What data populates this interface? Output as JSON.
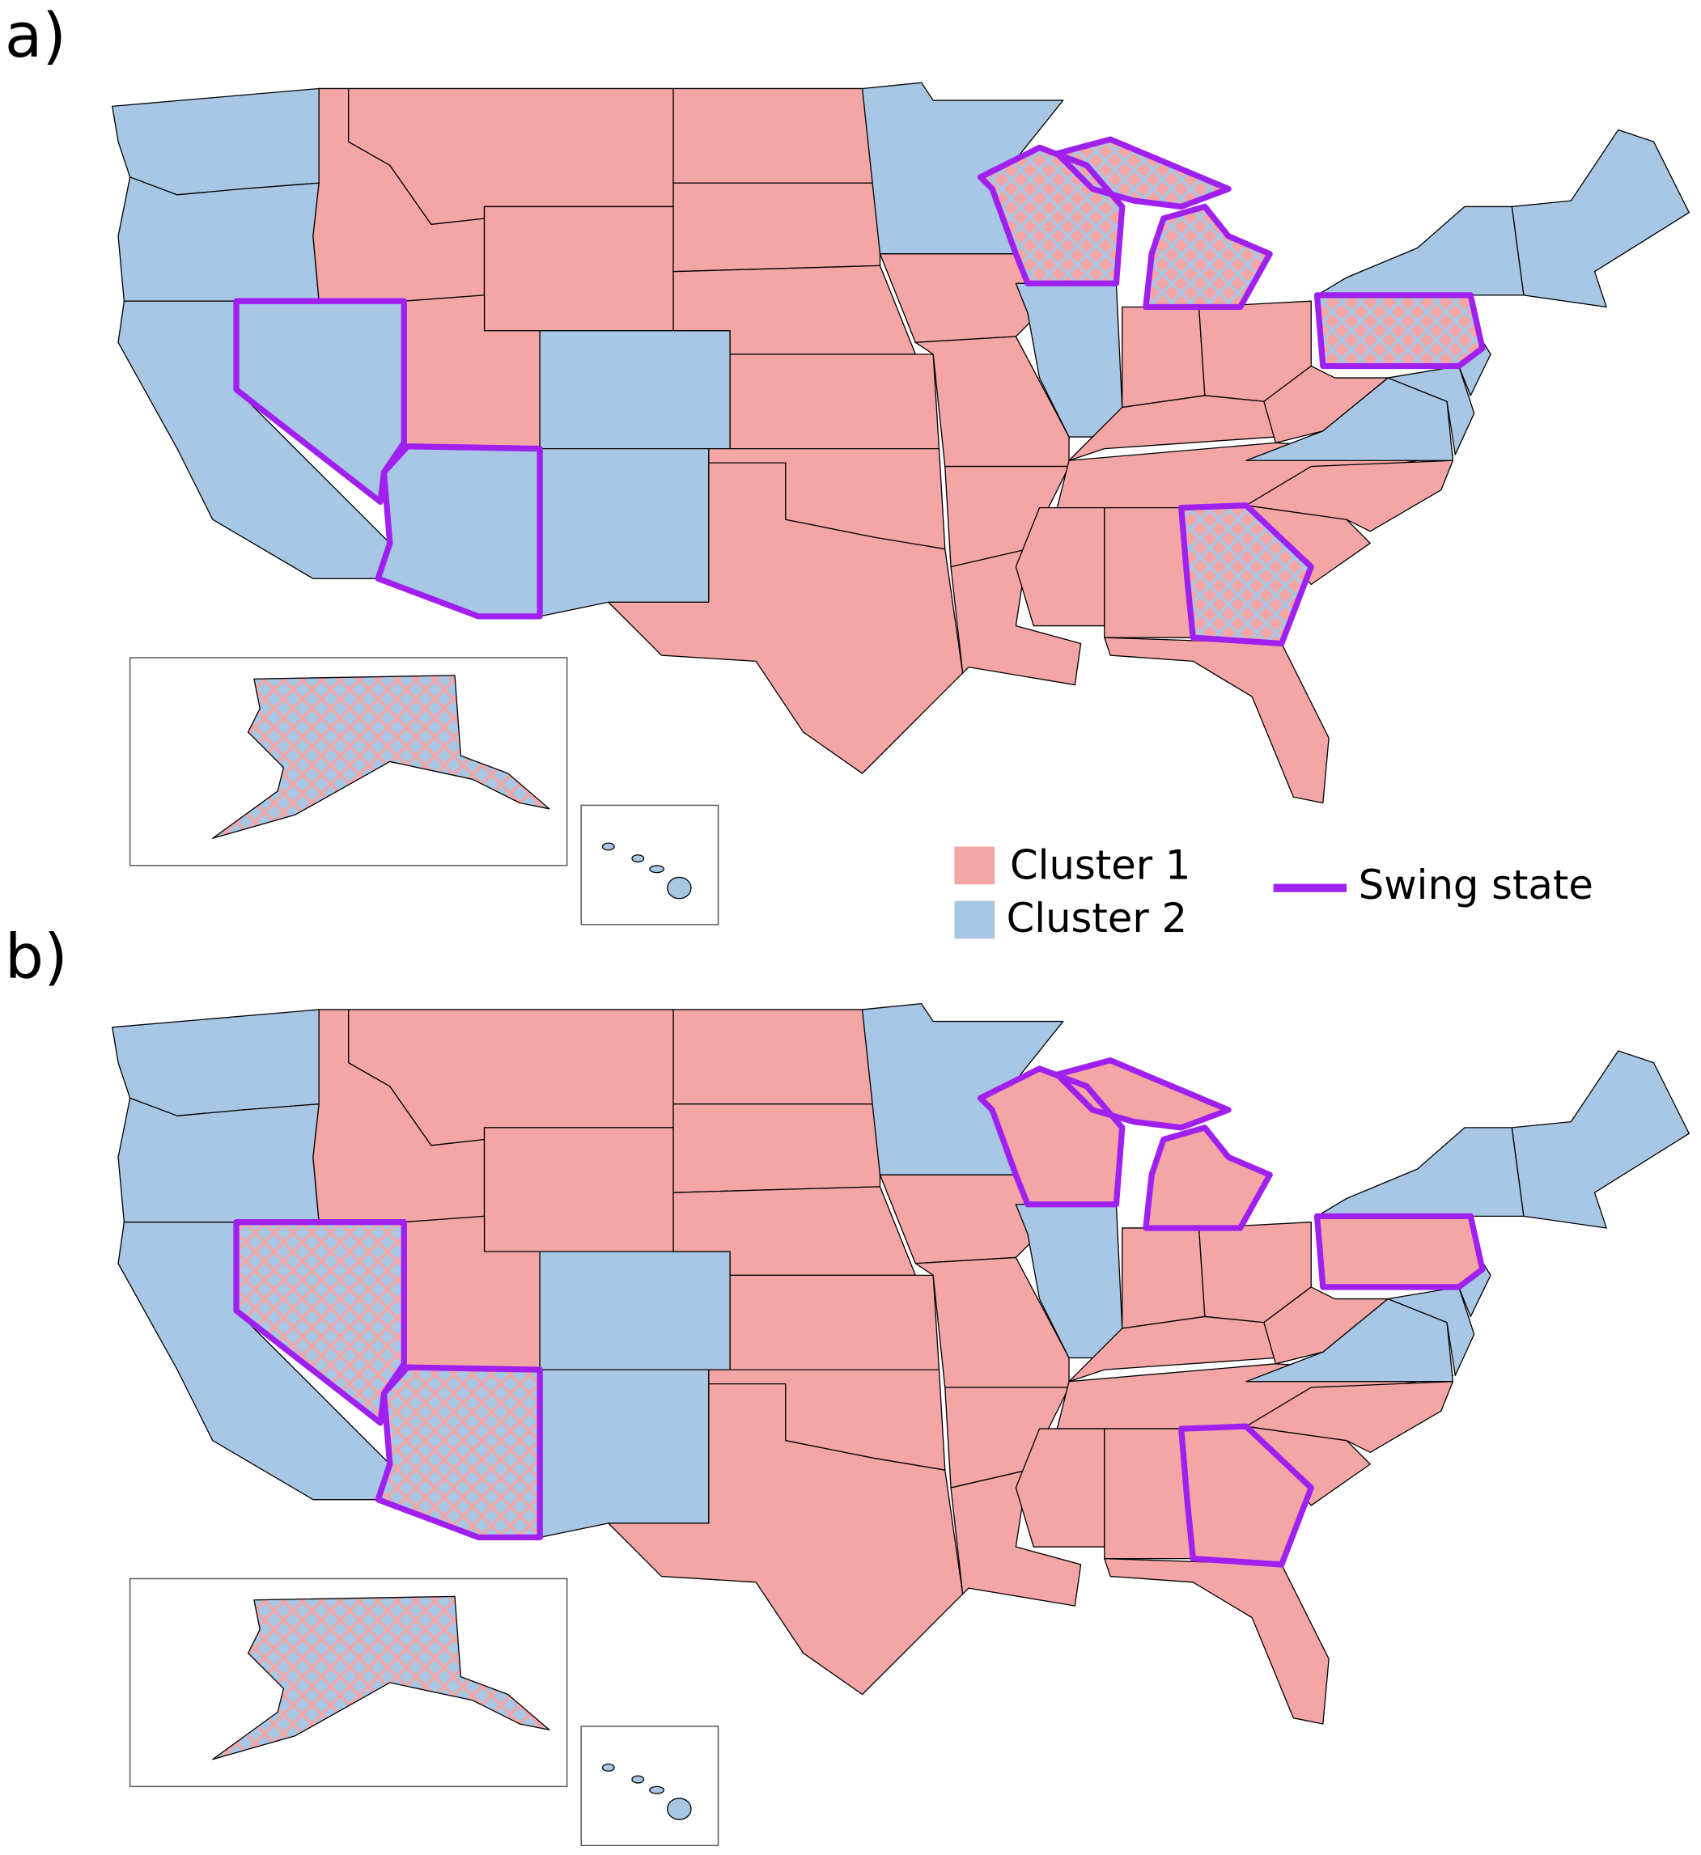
{
  "panels": [
    {
      "label": "a)"
    },
    {
      "label": "b)"
    }
  ],
  "legend": {
    "items": [
      {
        "label": "Cluster 1",
        "color": "#f4a6a6"
      },
      {
        "label": "Cluster 2",
        "color": "#a7c7e5"
      }
    ],
    "swing": {
      "label": "Swing state",
      "color": "#a020f0"
    }
  }
}
